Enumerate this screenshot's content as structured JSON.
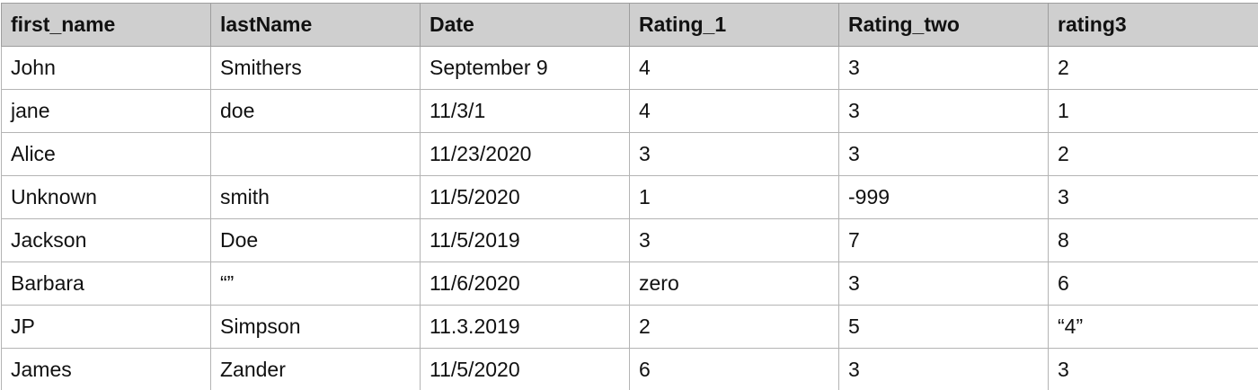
{
  "table": {
    "columns": [
      "first_name",
      "lastName",
      "Date",
      "Rating_1",
      "Rating_two",
      "rating3"
    ],
    "rows": [
      [
        "John",
        "Smithers",
        "September 9",
        "4",
        "3",
        "2"
      ],
      [
        "jane",
        "doe",
        "11/3/1",
        "4",
        "3",
        "1"
      ],
      [
        "Alice",
        "",
        "11/23/2020",
        "3",
        "3",
        "2"
      ],
      [
        "Unknown",
        "smith",
        "11/5/2020",
        "1",
        "-999",
        "3"
      ],
      [
        "Jackson",
        "Doe",
        "11/5/2019",
        "3",
        "7",
        "8"
      ],
      [
        "Barbara",
        "“”",
        "11/6/2020",
        "zero",
        "3",
        "6"
      ],
      [
        "JP",
        "Simpson",
        "11.3.2019",
        "2",
        "5",
        "“4”"
      ],
      [
        "James",
        "Zander",
        "11/5/2020",
        "6",
        "3",
        "3"
      ]
    ]
  },
  "colors": {
    "header_background": "#cfcfcf",
    "grid_lines": "#b4b4b4",
    "text": "#111111"
  }
}
